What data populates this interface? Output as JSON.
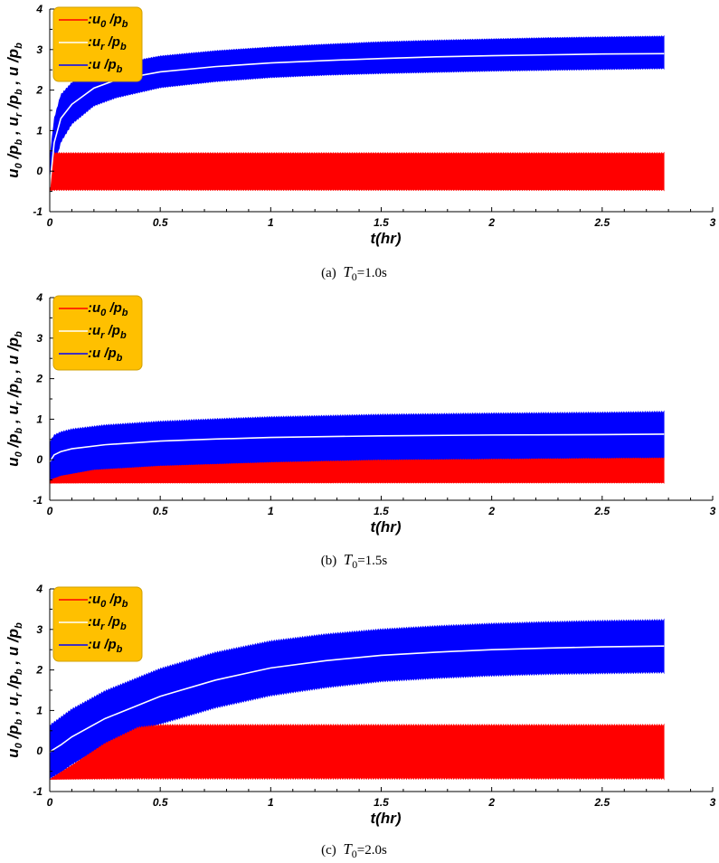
{
  "colors": {
    "u0": "#ff0000",
    "ur": "#ffffff",
    "u": "#0000ff",
    "legend_bg": "#ffc000",
    "legend_border": "#d0a000"
  },
  "chart_data": [
    {
      "type": "line",
      "caption": "(a)  T0=1.0s",
      "caption_prefix": "(a)",
      "caption_symbol": "T",
      "caption_sub": "0",
      "caption_value": "=1.0s",
      "xlabel": "t(hr)",
      "ylabel": "u0 /pb , ur /pb , u /pb",
      "xlim": [
        0,
        3
      ],
      "ylim": [
        -1,
        4
      ],
      "x_ticks": [
        "0",
        "0.5",
        "1",
        "1.5",
        "2",
        "2.5",
        "3"
      ],
      "y_ticks": [
        "-1",
        "0",
        "1",
        "2",
        "3",
        "4"
      ],
      "legend": {
        "placement": "top-left",
        "entries": [
          {
            "series": "u0",
            "colon": ":",
            "sym": "u",
            "sub": "0",
            "tail": " /p",
            "tsub": "b"
          },
          {
            "series": "ur",
            "colon": ":",
            "sym": "u",
            "sub": "r",
            "tail": " /p",
            "tsub": "b"
          },
          {
            "series": "u",
            "colon": ":",
            "sym": "u",
            "sub": "",
            "tail": " /p",
            "tsub": "b"
          }
        ]
      },
      "series": [
        {
          "name": "u/pb upper envelope",
          "key": "u_upper",
          "x": [
            0,
            0.02,
            0.05,
            0.1,
            0.2,
            0.3,
            0.5,
            0.75,
            1.0,
            1.25,
            1.5,
            1.75,
            2.0,
            2.25,
            2.5,
            2.78
          ],
          "values": [
            0.3,
            1.3,
            1.9,
            2.2,
            2.5,
            2.65,
            2.85,
            2.98,
            3.07,
            3.14,
            3.2,
            3.24,
            3.27,
            3.3,
            3.32,
            3.34
          ]
        },
        {
          "name": "u/pb lower envelope",
          "key": "u_lower",
          "x": [
            0,
            0.02,
            0.05,
            0.1,
            0.2,
            0.3,
            0.5,
            0.75,
            1.0,
            1.25,
            1.5,
            1.75,
            2.0,
            2.25,
            2.5,
            2.78
          ],
          "values": [
            -0.5,
            0.1,
            0.7,
            1.15,
            1.6,
            1.8,
            2.05,
            2.2,
            2.3,
            2.36,
            2.4,
            2.43,
            2.46,
            2.48,
            2.5,
            2.52
          ]
        },
        {
          "name": "ur/pb",
          "key": "ur",
          "x": [
            0,
            0.02,
            0.05,
            0.1,
            0.2,
            0.3,
            0.5,
            0.75,
            1.0,
            1.25,
            1.5,
            1.75,
            2.0,
            2.25,
            2.5,
            2.78
          ],
          "values": [
            -0.4,
            0.7,
            1.3,
            1.65,
            2.05,
            2.25,
            2.45,
            2.58,
            2.67,
            2.73,
            2.78,
            2.82,
            2.85,
            2.87,
            2.89,
            2.9
          ]
        },
        {
          "name": "u0/pb upper envelope",
          "key": "u0_upper",
          "x": [
            0,
            0.02,
            0.05,
            2.78
          ],
          "values": [
            -0.45,
            0.46,
            0.46,
            0.46
          ]
        },
        {
          "name": "u0/pb lower envelope",
          "key": "u0_lower",
          "x": [
            0,
            2.78
          ],
          "values": [
            -0.48,
            -0.48
          ]
        }
      ]
    },
    {
      "type": "line",
      "caption": "(b)  T0=1.5s",
      "caption_prefix": "(b)",
      "caption_symbol": "T",
      "caption_sub": "0",
      "caption_value": "=1.5s",
      "xlabel": "t(hr)",
      "ylabel": "u0 /pb , ur /pb , u /pb",
      "xlim": [
        0,
        3
      ],
      "ylim": [
        -1,
        4
      ],
      "x_ticks": [
        "0",
        "0.5",
        "1",
        "1.5",
        "2",
        "2.5",
        "3"
      ],
      "y_ticks": [
        "-1",
        "0",
        "1",
        "2",
        "3",
        "4"
      ],
      "legend": {
        "placement": "top-left",
        "entries": [
          {
            "series": "u0",
            "colon": ":",
            "sym": "u",
            "sub": "0",
            "tail": " /p",
            "tsub": "b"
          },
          {
            "series": "ur",
            "colon": ":",
            "sym": "u",
            "sub": "r",
            "tail": " /p",
            "tsub": "b"
          },
          {
            "series": "u",
            "colon": ":",
            "sym": "u",
            "sub": "",
            "tail": " /p",
            "tsub": "b"
          }
        ]
      },
      "series": [
        {
          "name": "u/pb upper envelope",
          "key": "u_upper",
          "x": [
            0,
            0.02,
            0.05,
            0.1,
            0.25,
            0.5,
            0.75,
            1.0,
            1.5,
            2.0,
            2.5,
            2.78
          ],
          "values": [
            0.45,
            0.62,
            0.7,
            0.77,
            0.87,
            0.96,
            1.02,
            1.07,
            1.13,
            1.16,
            1.18,
            1.2
          ]
        },
        {
          "name": "u/pb lower envelope",
          "key": "u_lower",
          "x": [
            0,
            0.05,
            0.2,
            0.5,
            1.0,
            1.5,
            2.0,
            2.5,
            2.78
          ],
          "values": [
            -0.55,
            -0.45,
            -0.3,
            -0.2,
            -0.1,
            -0.06,
            -0.04,
            -0.02,
            0.0
          ]
        },
        {
          "name": "ur/pb",
          "key": "ur",
          "x": [
            0,
            0.02,
            0.05,
            0.1,
            0.25,
            0.5,
            0.75,
            1.0,
            1.5,
            2.0,
            2.5,
            2.78
          ],
          "values": [
            -0.05,
            0.12,
            0.2,
            0.27,
            0.37,
            0.46,
            0.51,
            0.55,
            0.59,
            0.61,
            0.62,
            0.63
          ]
        },
        {
          "name": "u0/pb upper envelope",
          "key": "u0_upper",
          "x": [
            0,
            0.05,
            0.2,
            0.5,
            1.0,
            1.5,
            2.0,
            2.5,
            2.78
          ],
          "values": [
            -0.5,
            -0.4,
            -0.25,
            -0.15,
            -0.06,
            0.0,
            0.02,
            0.04,
            0.05
          ]
        },
        {
          "name": "u0/pb lower envelope",
          "key": "u0_lower",
          "x": [
            0,
            2.78
          ],
          "values": [
            -0.58,
            -0.58
          ]
        }
      ]
    },
    {
      "type": "line",
      "caption": "(c)  T0=2.0s",
      "caption_prefix": "(c)",
      "caption_symbol": "T",
      "caption_sub": "0",
      "caption_value": "=2.0s",
      "xlabel": "t(hr)",
      "ylabel": "u0 /pb , ur /pb , u /pb",
      "xlim": [
        0,
        3
      ],
      "ylim": [
        -1,
        4
      ],
      "x_ticks": [
        "0",
        "0.5",
        "1",
        "1.5",
        "2",
        "2.5",
        "3"
      ],
      "y_ticks": [
        "-1",
        "0",
        "1",
        "2",
        "3",
        "4"
      ],
      "legend": {
        "placement": "top-left",
        "entries": [
          {
            "series": "u0",
            "colon": ":",
            "sym": "u",
            "sub": "0",
            "tail": " /p",
            "tsub": "b"
          },
          {
            "series": "ur",
            "colon": ":",
            "sym": "u",
            "sub": "r",
            "tail": " /p",
            "tsub": "b"
          },
          {
            "series": "u",
            "colon": ":",
            "sym": "u",
            "sub": "",
            "tail": " /p",
            "tsub": "b"
          }
        ]
      },
      "series": [
        {
          "name": "u/pb upper envelope",
          "key": "u_upper",
          "x": [
            0,
            0.05,
            0.1,
            0.25,
            0.5,
            0.75,
            1.0,
            1.25,
            1.5,
            1.75,
            2.0,
            2.25,
            2.5,
            2.78
          ],
          "values": [
            0.65,
            0.85,
            1.05,
            1.5,
            2.05,
            2.45,
            2.73,
            2.9,
            3.02,
            3.1,
            3.16,
            3.2,
            3.23,
            3.25
          ]
        },
        {
          "name": "u/pb lower envelope",
          "key": "u_lower",
          "x": [
            0,
            0.05,
            0.1,
            0.25,
            0.5,
            0.75,
            1.0,
            1.25,
            1.5,
            1.75,
            2.0,
            2.25,
            2.5,
            2.78
          ],
          "values": [
            -0.7,
            -0.55,
            -0.35,
            0.1,
            0.65,
            1.05,
            1.35,
            1.55,
            1.7,
            1.78,
            1.84,
            1.88,
            1.9,
            1.92
          ]
        },
        {
          "name": "ur/pb",
          "key": "ur",
          "x": [
            0,
            0.05,
            0.1,
            0.25,
            0.5,
            0.75,
            1.0,
            1.25,
            1.5,
            1.75,
            2.0,
            2.25,
            2.5,
            2.78
          ],
          "values": [
            -0.02,
            0.15,
            0.35,
            0.8,
            1.35,
            1.75,
            2.05,
            2.23,
            2.36,
            2.44,
            2.5,
            2.54,
            2.57,
            2.59
          ]
        },
        {
          "name": "u0/pb upper envelope",
          "key": "u0_upper",
          "x": [
            0,
            0.1,
            0.25,
            0.4,
            0.5,
            2.78
          ],
          "values": [
            -0.7,
            -0.35,
            0.2,
            0.6,
            0.66,
            0.66
          ]
        },
        {
          "name": "u0/pb lower envelope",
          "key": "u0_lower",
          "x": [
            0,
            2.78
          ],
          "values": [
            -0.7,
            -0.7
          ]
        }
      ]
    }
  ]
}
